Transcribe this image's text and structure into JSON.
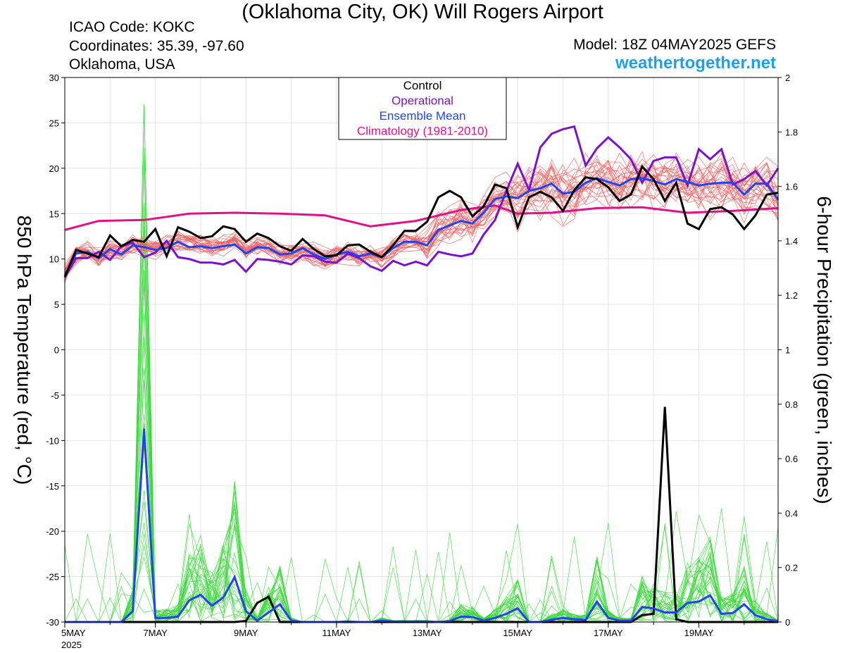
{
  "header": {
    "title": "(Oklahoma City, OK) Will Rogers Airport",
    "icao": "ICAO Code: KOKC",
    "coordinates": "Coordinates: 35.39, -97.60",
    "region": "Oklahoma, USA",
    "model": "Model: 18Z 04MAY2025 GEFS",
    "website": "weathertogether.net"
  },
  "colors": {
    "member_temp": "#f06060",
    "member_precip": "#3cd83c",
    "control": "#000000",
    "operational": "#7b12cc",
    "ensemble_mean": "#2244ee",
    "climatology": "#e0128a",
    "website": "#1ea0ee"
  },
  "chart_data": {
    "type": "line",
    "title": "(Oklahoma City, OK) Will Rogers Airport",
    "ylabel_left": "850 hPa Temperature (red, °C)",
    "ylabel_right": "6-hour Precipitation (green, inches)",
    "y_left_range": [
      -30,
      30
    ],
    "y_right_range": [
      0,
      2
    ],
    "y_left_ticks": [
      "30",
      "25",
      "20",
      "15",
      "10",
      "5",
      "0",
      "-5",
      "-10",
      "-15",
      "-20",
      "-25",
      "-30"
    ],
    "y_right_ticks": [
      "2",
      "1.8",
      "1.6",
      "1.4",
      "1.2",
      "1",
      "0.8",
      "0.6",
      "0.4",
      "0.2",
      "0"
    ],
    "x_range_days": [
      5,
      20.75
    ],
    "x_ticks": [
      {
        "day": 5,
        "label": "5MAY",
        "sub": "2025"
      },
      {
        "day": 7,
        "label": "7MAY",
        "sub": ""
      },
      {
        "day": 9,
        "label": "9MAY",
        "sub": ""
      },
      {
        "day": 11,
        "label": "11MAY",
        "sub": ""
      },
      {
        "day": 13,
        "label": "13MAY",
        "sub": ""
      },
      {
        "day": 15,
        "label": "15MAY",
        "sub": ""
      },
      {
        "day": 17,
        "label": "17MAY",
        "sub": ""
      },
      {
        "day": 19,
        "label": "19MAY",
        "sub": ""
      }
    ],
    "legend": {
      "placement": "top-center",
      "entries": [
        "Control",
        "Operational",
        "Ensemble Mean",
        "Climatology (1981-2010)"
      ]
    },
    "grid": true,
    "temperature_series": {
      "control": {
        "name": "Control",
        "x": [
          5.0,
          5.25,
          5.5,
          5.75,
          6.0,
          6.25,
          6.5,
          6.75,
          7.0,
          7.25,
          7.5,
          7.75,
          8.0,
          8.25,
          8.5,
          8.75,
          9.0,
          9.25,
          9.5,
          9.75,
          10.0,
          10.25,
          10.5,
          10.75,
          11.0,
          11.25,
          11.5,
          11.75,
          12.0,
          12.25,
          12.5,
          12.75,
          13.0,
          13.25,
          13.5,
          13.75,
          14.0,
          14.25,
          14.5,
          14.75,
          15.0,
          15.25,
          15.5,
          15.75,
          16.0,
          16.25,
          16.5,
          16.75,
          17.0,
          17.25,
          17.5,
          17.75,
          18.0,
          18.25,
          18.5,
          18.75,
          19.0,
          19.25,
          19.5,
          19.75,
          20.0,
          20.25,
          20.5,
          20.75
        ],
        "values": [
          8,
          11,
          10.6,
          10.2,
          12.6,
          11.4,
          12.1,
          11.9,
          13.3,
          10.3,
          13.5,
          13,
          12.3,
          12.5,
          13.6,
          13.3,
          11.9,
          12.8,
          12.3,
          11.4,
          10.9,
          12.2,
          11.1,
          10.3,
          10.4,
          11.5,
          11.6,
          10.8,
          10.2,
          11.5,
          13.1,
          13.1,
          14.1,
          16.8,
          17.5,
          16.8,
          14.7,
          15.8,
          18.2,
          17.8,
          13.5,
          16.8,
          17.4,
          16.8,
          15.3,
          17.6,
          19,
          18.8,
          17.9,
          16.4,
          17.1,
          20.2,
          18.8,
          16.4,
          18.4,
          13.9,
          13.3,
          15.5,
          15.7,
          14.9,
          13.3,
          14.8,
          17.1,
          17.3
        ]
      },
      "operational": {
        "name": "Operational",
        "x": [
          5.0,
          5.25,
          5.5,
          5.75,
          6.0,
          6.25,
          6.5,
          6.75,
          7.0,
          7.25,
          7.5,
          7.75,
          8.0,
          8.25,
          8.5,
          8.75,
          9.0,
          9.25,
          9.5,
          9.75,
          10.0,
          10.25,
          10.5,
          10.75,
          11.0,
          11.25,
          11.5,
          11.75,
          12.0,
          12.25,
          12.5,
          12.75,
          13.0,
          13.25,
          13.5,
          13.75,
          14.0,
          14.25,
          14.5,
          14.75,
          15.0,
          15.25,
          15.5,
          15.75,
          16.0,
          16.25,
          16.5,
          16.75,
          17.0,
          17.25,
          17.5,
          17.75,
          18.0,
          18.25,
          18.5,
          18.75,
          19.0,
          19.25,
          19.5,
          19.75,
          20.0,
          20.25,
          20.5,
          20.75
        ],
        "values": [
          8,
          10.1,
          10.1,
          10.8,
          9.9,
          11.4,
          11.8,
          10.2,
          10.7,
          12,
          10.2,
          10,
          9.6,
          9.6,
          9.4,
          9.9,
          8.6,
          10,
          9.9,
          9.7,
          9.4,
          10.4,
          10.3,
          9.7,
          9.6,
          10.6,
          10.1,
          9.2,
          8.7,
          9.8,
          9.3,
          9.7,
          9.3,
          10.8,
          10.5,
          10.3,
          10.6,
          12.7,
          14.3,
          17.5,
          20.5,
          17.6,
          22.3,
          23.8,
          24.3,
          24.6,
          20.3,
          22.2,
          23.4,
          22.3,
          21,
          18.4,
          20.8,
          21.2,
          21.2,
          18.1,
          22.1,
          21,
          22.1,
          18.2,
          18.8,
          19.7,
          18.1,
          20
        ]
      },
      "ensemble_mean": {
        "name": "Ensemble Mean",
        "x": [
          5.0,
          5.25,
          5.5,
          5.75,
          6.0,
          6.25,
          6.5,
          6.75,
          7.0,
          7.25,
          7.5,
          7.75,
          8.0,
          8.25,
          8.5,
          8.75,
          9.0,
          9.25,
          9.5,
          9.75,
          10.0,
          10.25,
          10.5,
          10.75,
          11.0,
          11.25,
          11.5,
          11.75,
          12.0,
          12.25,
          12.5,
          12.75,
          13.0,
          13.25,
          13.5,
          13.75,
          14.0,
          14.25,
          14.5,
          14.75,
          15.0,
          15.25,
          15.5,
          15.75,
          16.0,
          16.25,
          16.5,
          16.75,
          17.0,
          17.25,
          17.5,
          17.75,
          18.0,
          18.25,
          18.5,
          18.75,
          19.0,
          19.25,
          19.5,
          19.75,
          20.0,
          20.25,
          20.5,
          20.75
        ],
        "values": [
          8.2,
          10.6,
          10.8,
          10.1,
          11.1,
          10.5,
          11.5,
          11.3,
          11,
          11.2,
          11.9,
          11.3,
          11.4,
          11.2,
          11.4,
          11.6,
          10.6,
          11.3,
          11.2,
          10.5,
          10.6,
          11.2,
          10.5,
          10,
          10.5,
          10.8,
          10.3,
          10.6,
          10.2,
          11.2,
          11.9,
          11.9,
          11.5,
          13.2,
          13.7,
          14.2,
          13.9,
          15.1,
          16.6,
          16.9,
          16.7,
          17.5,
          17.8,
          18.3,
          17.2,
          17.4,
          18.4,
          18.9,
          18.5,
          18.1,
          18.8,
          18.9,
          18.6,
          18.2,
          18.8,
          18.5,
          18.1,
          18.3,
          18.4,
          18.4,
          17.1,
          18.3,
          18.3,
          16.5
        ]
      },
      "climatology": {
        "name": "Climatology (1981-2010)",
        "x": [
          5.0,
          5.75,
          6.75,
          7.75,
          8.75,
          9.75,
          10.75,
          11.75,
          12.75,
          13.75,
          14.5,
          15.0,
          15.75,
          16.75,
          17.75,
          18.75,
          19.75,
          20.75
        ],
        "values": [
          13.2,
          14.2,
          14.3,
          15,
          15.1,
          15,
          14.8,
          13.6,
          14.2,
          15.4,
          15.9,
          15,
          15.1,
          15.6,
          15.7,
          15.1,
          15.3,
          15.6
        ]
      }
    },
    "precipitation_series": {
      "control": {
        "name": "Control",
        "x": [
          5.0,
          5.25,
          5.5,
          5.75,
          6.0,
          6.25,
          6.5,
          6.75,
          7.0,
          7.25,
          7.5,
          7.75,
          8.0,
          8.25,
          8.5,
          8.75,
          9.0,
          9.25,
          9.5,
          9.75,
          10.0,
          10.25,
          10.5,
          10.75,
          11.0,
          11.25,
          11.5,
          11.75,
          12.0,
          12.25,
          12.5,
          12.75,
          13.0,
          13.25,
          13.5,
          13.75,
          14.0,
          14.25,
          14.5,
          14.75,
          15.0,
          15.25,
          15.5,
          15.75,
          16.0,
          16.25,
          16.5,
          16.75,
          17.0,
          17.25,
          17.5,
          17.75,
          18.0,
          18.25,
          18.5,
          18.75,
          19.0,
          19.25,
          19.5,
          19.75,
          20.0,
          20.25,
          20.5,
          20.75
        ],
        "values": [
          0,
          0,
          0,
          0,
          0,
          0,
          0,
          0,
          0,
          0,
          0,
          0,
          0,
          0,
          0,
          0,
          0.004,
          0.07,
          0.093,
          0,
          0,
          0,
          0,
          0,
          0,
          0,
          0,
          0,
          0,
          0,
          0,
          0,
          0,
          0,
          0,
          0,
          0,
          0,
          0,
          0,
          0,
          0,
          0,
          0,
          0,
          0,
          0,
          0,
          0,
          0,
          0,
          0.025,
          0.03,
          0.79,
          0.01,
          0,
          0,
          0,
          0,
          0,
          0,
          0,
          0,
          0
        ]
      },
      "ensemble_mean": {
        "name": "Ensemble Mean",
        "x": [
          5.0,
          5.25,
          5.5,
          5.75,
          6.0,
          6.25,
          6.5,
          6.75,
          7.0,
          7.25,
          7.5,
          7.75,
          8.0,
          8.25,
          8.5,
          8.75,
          9.0,
          9.25,
          9.5,
          9.75,
          10.0,
          10.25,
          10.5,
          10.75,
          11.0,
          11.25,
          11.5,
          11.75,
          12.0,
          12.25,
          12.5,
          12.75,
          13.0,
          13.25,
          13.5,
          13.75,
          14.0,
          14.25,
          14.5,
          14.75,
          15.0,
          15.25,
          15.5,
          15.75,
          16.0,
          16.25,
          16.5,
          16.75,
          17.0,
          17.25,
          17.5,
          17.75,
          18.0,
          18.25,
          18.5,
          18.75,
          19.0,
          19.25,
          19.5,
          19.75,
          20.0,
          20.25,
          20.5,
          20.75
        ],
        "values": [
          0,
          0,
          0,
          0,
          0,
          0,
          0.04,
          0.71,
          0.015,
          0.015,
          0.02,
          0.08,
          0.1,
          0.06,
          0.09,
          0.165,
          0.04,
          0.005,
          0.035,
          0.065,
          0.005,
          0,
          0,
          0,
          0,
          0.002,
          0,
          0,
          0.005,
          0.002,
          0.002,
          0.002,
          0.002,
          0,
          0.003,
          0.02,
          0.018,
          0.005,
          0.015,
          0.03,
          0.05,
          0,
          0,
          0.008,
          0.015,
          0.01,
          0.008,
          0.075,
          0.015,
          0.005,
          0.005,
          0.055,
          0.05,
          0.035,
          0.035,
          0.07,
          0.075,
          0.098,
          0.03,
          0.033,
          0.065,
          0.025,
          0.01,
          0.003
        ]
      }
    }
  }
}
